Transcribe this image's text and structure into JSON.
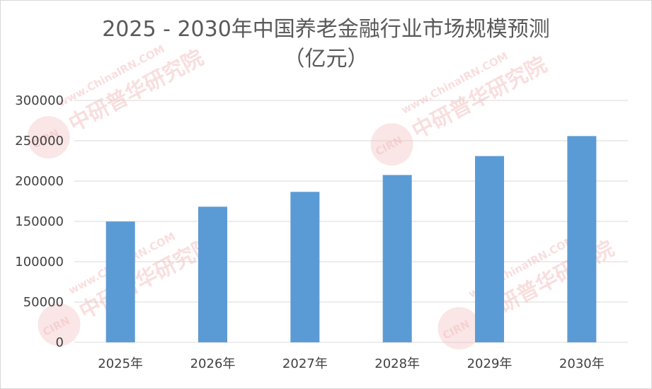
{
  "title_line1": "2025 - 2030年中国养老金融行业市场规模预测",
  "title_line2": "（亿元）",
  "watermark": {
    "url": "www.ChinaIRN.COM",
    "name": "中研普华研究院",
    "badge": "CIRN"
  },
  "colors": {
    "bar": "#5b9bd5",
    "grid": "#d9d9d9",
    "text": "#595959"
  },
  "chart_data": {
    "type": "bar",
    "categories": [
      "2025年",
      "2026年",
      "2027年",
      "2028年",
      "2029年",
      "2030年"
    ],
    "values": [
      149800,
      168200,
      186600,
      207500,
      231000,
      255800
    ],
    "ylim": [
      0,
      300000
    ],
    "yticks": [
      0,
      50000,
      100000,
      150000,
      200000,
      250000,
      300000
    ],
    "grid": true,
    "legend": "none"
  }
}
